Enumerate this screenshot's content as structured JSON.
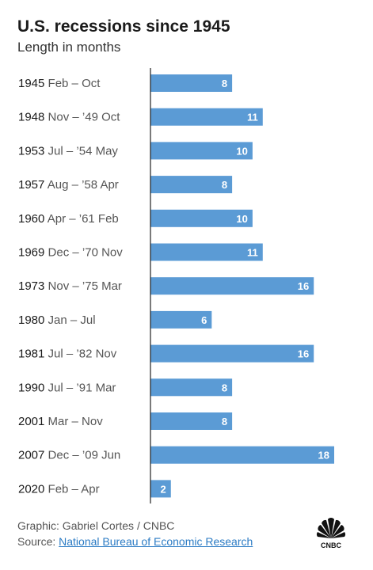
{
  "header": {
    "title": "U.S. recessions since 1945",
    "subtitle": "Length in months"
  },
  "footer": {
    "credit": "Graphic: Gabriel Cortes / CNBC",
    "source_prefix": "Source: ",
    "source_link": "National Bureau of Economic Research",
    "logo_text": "CNBC"
  },
  "colors": {
    "bar": "#5b9bd5",
    "bar_label": "#ffffff",
    "axis": "#222222",
    "year_text": "#1b1b1b",
    "range_text": "#555555"
  },
  "chart_data": {
    "type": "bar",
    "orientation": "horizontal",
    "title": "U.S. recessions since 1945",
    "subtitle": "Length in months",
    "categories": [
      {
        "year": "1945",
        "range": "Feb – Oct"
      },
      {
        "year": "1948",
        "range": "Nov – ’49 Oct"
      },
      {
        "year": "1953",
        "range": "Jul – ’54 May"
      },
      {
        "year": "1957",
        "range": "Aug – ’58 Apr"
      },
      {
        "year": "1960",
        "range": "Apr – ’61 Feb"
      },
      {
        "year": "1969",
        "range": "Dec – ’70 Nov"
      },
      {
        "year": "1973",
        "range": "Nov – ’75 Mar"
      },
      {
        "year": "1980",
        "range": "Jan – Jul"
      },
      {
        "year": "1981",
        "range": "Jul – ’82 Nov"
      },
      {
        "year": "1990",
        "range": "Jul – ’91 Mar"
      },
      {
        "year": "2001",
        "range": "Mar – Nov"
      },
      {
        "year": "2007",
        "range": "Dec – ’09 Jun"
      },
      {
        "year": "2020",
        "range": "Feb – Apr"
      }
    ],
    "values": [
      8,
      11,
      10,
      8,
      10,
      11,
      16,
      6,
      16,
      8,
      8,
      18,
      2
    ],
    "xlim": [
      0,
      20
    ],
    "data_labels": true,
    "grid": false
  }
}
